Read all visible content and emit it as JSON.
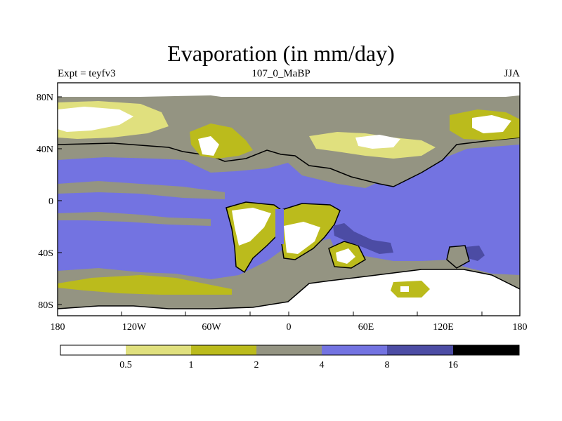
{
  "title": "Evaporation (in mm/day)",
  "subtitle_left": "Expt = teyfv3",
  "subtitle_center": "107_0_MaBP",
  "subtitle_right": "JJA",
  "map_data": {
    "type": "filled-contour-map",
    "variable": "Evaporation",
    "units": "mm/day",
    "season": "JJA",
    "lon_ticks": [
      "180",
      "120W",
      "60W",
      "0",
      "60E",
      "120E",
      "180"
    ],
    "lat_ticks": [
      "80N",
      "40N",
      "0",
      "40S",
      "80S"
    ],
    "lon_range": [
      -180,
      180
    ],
    "lat_range": [
      -90,
      90
    ]
  },
  "legend": {
    "levels": [
      "0.5",
      "1",
      "2",
      "4",
      "8",
      "16"
    ],
    "colors": [
      "#ffffff",
      "#e0e07e",
      "#bbbb1c",
      "#949482",
      "#7373e1",
      "#4c4ca4",
      "#000000"
    ]
  }
}
